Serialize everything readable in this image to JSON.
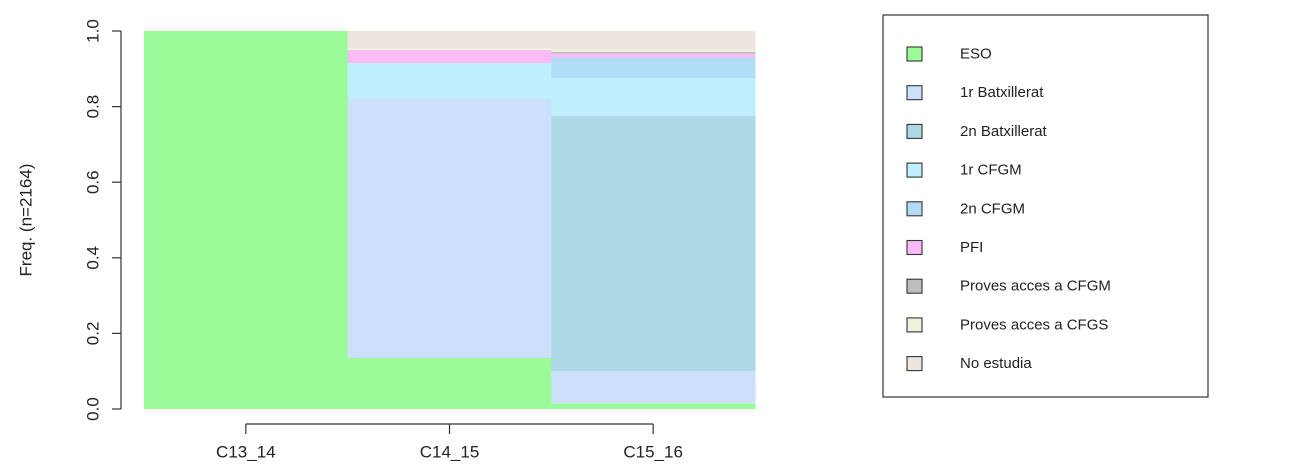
{
  "chart_data": {
    "type": "bar",
    "stacked": true,
    "normalized": true,
    "title": "",
    "xlabel": "",
    "ylabel": "Freq. (n=2164)",
    "ylim": [
      0,
      1
    ],
    "yticks": [
      "0.0",
      "0.2",
      "0.4",
      "0.6",
      "0.8",
      "1.0"
    ],
    "categories": [
      "C13_14",
      "C14_15",
      "C15_16"
    ],
    "legend_position": "right",
    "grid": false,
    "series": [
      {
        "name": "ESO",
        "color": "#9bfa98",
        "values": [
          1.0,
          0.135,
          0.015
        ]
      },
      {
        "name": "1r Batxillerat",
        "color": "#cce0fb",
        "values": [
          0.0,
          0.685,
          0.085
        ]
      },
      {
        "name": "2n Batxillerat",
        "color": "#add8e6",
        "values": [
          0.0,
          0.0,
          0.675
        ]
      },
      {
        "name": "1r CFGM",
        "color": "#bfeefc",
        "values": [
          0.0,
          0.095,
          0.1
        ]
      },
      {
        "name": "2n CFGM",
        "color": "#b0dcf6",
        "values": [
          0.0,
          0.0,
          0.055
        ]
      },
      {
        "name": "PFI",
        "color": "#f9baf6",
        "values": [
          0.0,
          0.035,
          0.01
        ]
      },
      {
        "name": "Proves acces a CFGM",
        "color": "#bdbdbd",
        "values": [
          0.0,
          0.0,
          0.005
        ]
      },
      {
        "name": "Proves acces a CFGS",
        "color": "#f0f0dc",
        "values": [
          0.0,
          0.005,
          0.005
        ]
      },
      {
        "name": "No estudia",
        "color": "#ede6df",
        "values": [
          0.0,
          0.045,
          0.05
        ]
      }
    ]
  }
}
